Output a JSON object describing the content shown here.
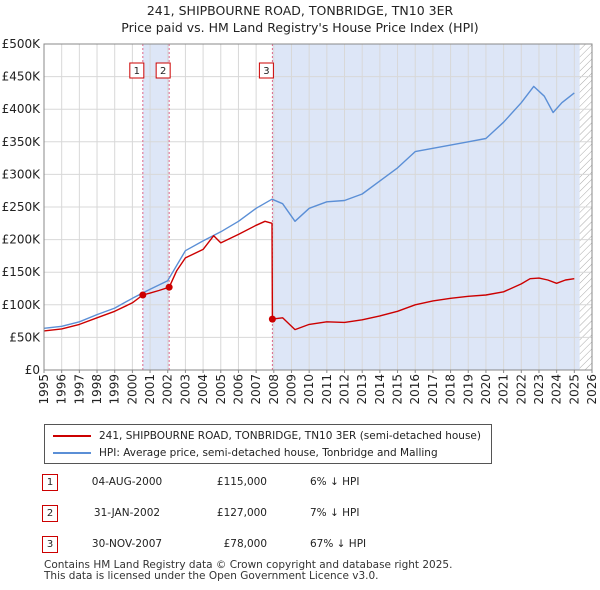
{
  "header": {
    "title": "241, SHIPBOURNE ROAD, TONBRIDGE, TN10 3ER",
    "subtitle": "Price paid vs. HM Land Registry's House Price Index (HPI)"
  },
  "chart_data": {
    "type": "line",
    "title": "241, SHIPBOURNE ROAD, TONBRIDGE, TN10 3ER",
    "subtitle": "Price paid vs. HM Land Registry's House Price Index (HPI)",
    "xlim": [
      1995,
      2026
    ],
    "ylim": [
      0,
      500000
    ],
    "x_ticks": [
      1995,
      1996,
      1997,
      1998,
      1999,
      2000,
      2001,
      2002,
      2003,
      2004,
      2005,
      2006,
      2007,
      2008,
      2009,
      2010,
      2011,
      2012,
      2013,
      2014,
      2015,
      2016,
      2017,
      2018,
      2019,
      2020,
      2021,
      2022,
      2023,
      2024,
      2025,
      2026
    ],
    "y_ticks": [
      0,
      50000,
      100000,
      150000,
      200000,
      250000,
      300000,
      350000,
      400000,
      450000,
      500000
    ],
    "y_tick_labels": [
      "£0",
      "£50K",
      "£100K",
      "£150K",
      "£200K",
      "£250K",
      "£300K",
      "£350K",
      "£400K",
      "£450K",
      "£500K"
    ],
    "grid": true,
    "colors": {
      "property": "#cc0000",
      "hpi": "#5b8fd6",
      "shade": "#dde6f7",
      "vline": "#dd6688"
    },
    "series": [
      {
        "name": "241, SHIPBOURNE ROAD, TONBRIDGE, TN10 3ER (semi-detached house)",
        "color": "#cc0000",
        "x": [
          1995.0,
          1996.0,
          1997.0,
          1998.0,
          1999.0,
          2000.0,
          2000.59,
          2001.0,
          2001.5,
          2002.08,
          2002.5,
          2003.0,
          2004.0,
          2004.6,
          2005.0,
          2006.0,
          2007.0,
          2007.5,
          2007.9,
          2007.92,
          2008.5,
          2009.2,
          2010.0,
          2011.0,
          2012.0,
          2013.0,
          2014.0,
          2015.0,
          2016.0,
          2017.0,
          2018.0,
          2019.0,
          2020.0,
          2021.0,
          2022.0,
          2022.5,
          2023.0,
          2023.5,
          2024.0,
          2024.5,
          2025.0
        ],
        "y": [
          60000,
          63000,
          70000,
          80000,
          90000,
          103000,
          115000,
          118000,
          122000,
          127000,
          152000,
          172000,
          185000,
          206000,
          195000,
          208000,
          222000,
          228000,
          225000,
          78000,
          80000,
          62000,
          70000,
          74000,
          73000,
          77000,
          83000,
          90000,
          100000,
          106000,
          110000,
          113000,
          115000,
          120000,
          132000,
          140000,
          141000,
          138000,
          133000,
          138000,
          140000
        ]
      },
      {
        "name": "HPI: Average price, semi-detached house, Tonbridge and Malling",
        "color": "#5b8fd6",
        "x": [
          1995.0,
          1996.0,
          1997.0,
          1998.0,
          1999.0,
          2000.0,
          2001.0,
          2002.0,
          2003.0,
          2004.0,
          2005.0,
          2006.0,
          2007.0,
          2007.9,
          2008.5,
          2009.2,
          2010.0,
          2011.0,
          2012.0,
          2013.0,
          2014.0,
          2015.0,
          2016.0,
          2017.0,
          2018.0,
          2019.0,
          2020.0,
          2021.0,
          2022.0,
          2022.7,
          2023.3,
          2023.8,
          2024.3,
          2025.0
        ],
        "y": [
          64000,
          67000,
          74000,
          85000,
          95000,
          110000,
          124000,
          137000,
          183000,
          198000,
          212000,
          228000,
          248000,
          262000,
          255000,
          228000,
          248000,
          258000,
          260000,
          270000,
          290000,
          310000,
          335000,
          340000,
          345000,
          350000,
          355000,
          380000,
          410000,
          435000,
          420000,
          395000,
          410000,
          425000
        ]
      }
    ],
    "annotations": [
      {
        "label": "1",
        "x": 2000.59
      },
      {
        "label": "2",
        "x": 2002.08
      },
      {
        "label": "3",
        "x": 2007.92
      }
    ],
    "shaded_ranges": [
      [
        2000.59,
        2002.08
      ],
      [
        2007.92,
        2025.3
      ]
    ],
    "hatched_from": 2025.3
  },
  "legend": {
    "property_label": "241, SHIPBOURNE ROAD, TONBRIDGE, TN10 3ER (semi-detached house)",
    "hpi_label": "HPI: Average price, semi-detached house, Tonbridge and Malling"
  },
  "transactions": [
    {
      "num": "1",
      "date": "04-AUG-2000",
      "price": "£115,000",
      "hpi": "6% ↓ HPI"
    },
    {
      "num": "2",
      "date": "31-JAN-2002",
      "price": "£127,000",
      "hpi": "7% ↓ HPI"
    },
    {
      "num": "3",
      "date": "30-NOV-2007",
      "price": "£78,000",
      "hpi": "67% ↓ HPI"
    }
  ],
  "footer": {
    "line1": "Contains HM Land Registry data © Crown copyright and database right 2025.",
    "line2": "This data is licensed under the Open Government Licence v3.0."
  }
}
